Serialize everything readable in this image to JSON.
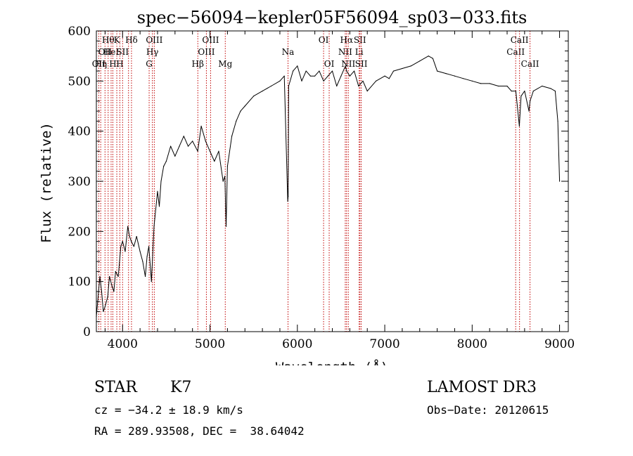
{
  "chart_data": {
    "type": "line",
    "title": "spec−56094−kepler05F56094_sp03−033.fits",
    "xlabel": "Wavelength (Å)",
    "ylabel": "Flux (relative)",
    "xlim": [
      3700,
      9100
    ],
    "ylim": [
      0,
      600
    ],
    "xticks": [
      4000,
      5000,
      6000,
      7000,
      8000,
      9000
    ],
    "yticks": [
      0,
      100,
      200,
      300,
      400,
      500,
      600
    ],
    "xtick_labels": [
      "4000",
      "5000",
      "6000",
      "7000",
      "8000",
      "9000"
    ],
    "ytick_labels": [
      "0",
      "100",
      "200",
      "300",
      "400",
      "500",
      "600"
    ],
    "grid": false,
    "series": [
      {
        "x": [
          3700,
          3740,
          3760,
          3780,
          3800,
          3830,
          3850,
          3880,
          3900,
          3920,
          3950,
          3980,
          4000,
          4030,
          4060,
          4080,
          4100,
          4130,
          4160,
          4200,
          4230,
          4260,
          4280,
          4300,
          4330,
          4360,
          4400,
          4420,
          4440,
          4470,
          4500,
          4550,
          4600,
          4650,
          4700,
          4750,
          4800,
          4860,
          4900,
          4950,
          5000,
          5050,
          5100,
          5150,
          5170,
          5185,
          5200,
          5250,
          5300,
          5350,
          5400,
          5500,
          5600,
          5700,
          5800,
          5850,
          5890,
          5895,
          5900,
          5950,
          6000,
          6050,
          6100,
          6150,
          6200,
          6250,
          6300,
          6350,
          6400,
          6450,
          6500,
          6550,
          6563,
          6600,
          6650,
          6700,
          6750,
          6800,
          6900,
          7000,
          7050,
          7100,
          7200,
          7300,
          7400,
          7500,
          7550,
          7600,
          7700,
          7800,
          7900,
          8000,
          8100,
          8200,
          8300,
          8400,
          8450,
          8500,
          8540,
          8560,
          8600,
          8650,
          8662,
          8700,
          8800,
          8900,
          8950,
          8980,
          9000
        ],
        "y": [
          30,
          110,
          80,
          40,
          50,
          70,
          110,
          90,
          80,
          120,
          110,
          170,
          180,
          160,
          210,
          190,
          180,
          170,
          190,
          160,
          140,
          110,
          150,
          170,
          100,
          210,
          280,
          250,
          300,
          330,
          340,
          370,
          350,
          370,
          390,
          370,
          380,
          360,
          410,
          380,
          360,
          340,
          360,
          300,
          310,
          210,
          330,
          390,
          420,
          440,
          450,
          470,
          480,
          490,
          500,
          510,
          260,
          270,
          490,
          520,
          530,
          500,
          520,
          510,
          510,
          520,
          500,
          510,
          520,
          490,
          510,
          530,
          520,
          510,
          520,
          490,
          500,
          480,
          500,
          510,
          505,
          520,
          525,
          530,
          540,
          550,
          545,
          520,
          515,
          510,
          505,
          500,
          495,
          495,
          490,
          490,
          480,
          480,
          410,
          470,
          480,
          440,
          460,
          480,
          490,
          485,
          480,
          420,
          300
        ]
      }
    ],
    "lines": [
      {
        "x": 3727,
        "row": 2,
        "label": "OII"
      },
      {
        "x": 3750,
        "row": 2,
        "label": "Hη"
      },
      {
        "x": 3799,
        "row": 1,
        "label": "OII"
      },
      {
        "x": 3835,
        "row": 0,
        "label": "Hθ"
      },
      {
        "x": 3869,
        "row": 1,
        "label": "HeI"
      },
      {
        "x": 3889,
        "row": 2,
        "label": "H"
      },
      {
        "x": 3934,
        "row": 0,
        "label": "K"
      },
      {
        "x": 3969,
        "row": 2,
        "label": "H"
      },
      {
        "x": 4000,
        "row": 1,
        "label": "SII"
      },
      {
        "x": 4068,
        "row": 1,
        "label": ""
      },
      {
        "x": 4102,
        "row": 0,
        "label": "Hδ"
      },
      {
        "x": 4304,
        "row": 2,
        "label": "G"
      },
      {
        "x": 4341,
        "row": 1,
        "label": "Hγ"
      },
      {
        "x": 4363,
        "row": 0,
        "label": "OIII"
      },
      {
        "x": 4861,
        "row": 2,
        "label": "Hβ"
      },
      {
        "x": 4959,
        "row": 1,
        "label": "OIII"
      },
      {
        "x": 5007,
        "row": 0,
        "label": "OIII"
      },
      {
        "x": 5175,
        "row": 2,
        "label": "Mg"
      },
      {
        "x": 5893,
        "row": 1,
        "label": "Na"
      },
      {
        "x": 6300,
        "row": 0,
        "label": "OI"
      },
      {
        "x": 6364,
        "row": 2,
        "label": "OI"
      },
      {
        "x": 6548,
        "row": 1,
        "label": "NII"
      },
      {
        "x": 6563,
        "row": 0,
        "label": "Hα"
      },
      {
        "x": 6583,
        "row": 2,
        "label": "NII"
      },
      {
        "x": 6707,
        "row": 1,
        "label": "Li"
      },
      {
        "x": 6716,
        "row": 0,
        "label": "SII"
      },
      {
        "x": 6731,
        "row": 2,
        "label": "SII"
      },
      {
        "x": 8498,
        "row": 1,
        "label": "CaII"
      },
      {
        "x": 8542,
        "row": 0,
        "label": "CaII"
      },
      {
        "x": 8662,
        "row": 2,
        "label": "CaII"
      }
    ]
  },
  "info": {
    "class": "STAR",
    "subclass": "K7",
    "survey": "LAMOST DR3",
    "cz": "cz = −34.2 ± 18.9 km/s",
    "obs_date": "Obs−Date: 20120615",
    "radec": "RA = 289.93508, DEC =  38.64042"
  },
  "colors": {
    "spectrum": "#000000",
    "line_markers": "#c00000",
    "axes": "#000000",
    "background": "#ffffff"
  }
}
